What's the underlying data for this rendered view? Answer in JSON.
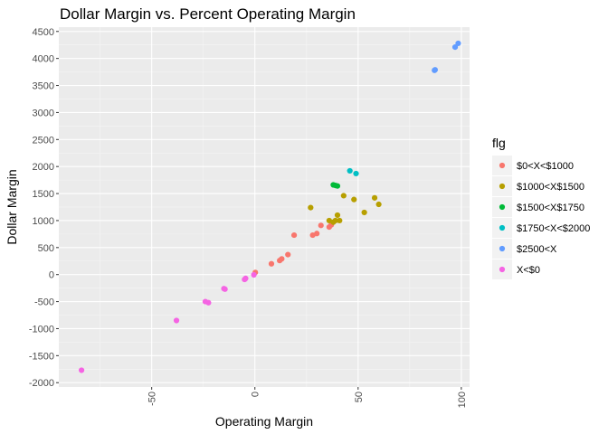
{
  "chart_data": {
    "type": "scatter",
    "title": "Dollar Margin vs. Percent Operating Margin",
    "xlabel": "Operating Margin",
    "ylabel": "Dollar Margin",
    "xlim": [
      -95,
      104
    ],
    "ylim": [
      -2080,
      4580
    ],
    "x_ticks": [
      -50,
      0,
      50,
      100
    ],
    "x_tick_labels": [
      "-50",
      "0",
      "50",
      "100"
    ],
    "y_ticks": [
      -2000,
      -1500,
      -1000,
      -500,
      0,
      500,
      1000,
      1500,
      2000,
      2500,
      3000,
      3500,
      4000,
      4500
    ],
    "y_tick_labels": [
      "-2000",
      "-1500",
      "-1000",
      "-500",
      "0",
      "500",
      "1000",
      "1500",
      "2000",
      "2500",
      "3000",
      "3500",
      "4000",
      "4500"
    ],
    "grid": true,
    "legend": {
      "title": "flg",
      "placement": "right"
    },
    "series": [
      {
        "name": "$0<X<$1000",
        "color": "#F8766D",
        "x": [
          0.2,
          8,
          12,
          13,
          16,
          19,
          28,
          30,
          32,
          36,
          37
        ],
        "y": [
          40,
          200,
          260,
          290,
          370,
          730,
          730,
          760,
          910,
          880,
          920
        ]
      },
      {
        "name": "$1000<X$1500",
        "color": "#B79F00",
        "x": [
          27,
          36,
          38,
          39,
          40,
          41,
          43,
          48,
          53,
          58,
          60
        ],
        "y": [
          1240,
          1000,
          970,
          1000,
          1100,
          1000,
          1460,
          1390,
          1150,
          1420,
          1300
        ]
      },
      {
        "name": "$1500<X$1750",
        "color": "#00BA38",
        "x": [
          38,
          39,
          40
        ],
        "y": [
          1660,
          1650,
          1640
        ]
      },
      {
        "name": "$1750<X<$2000",
        "color": "#00BFC4",
        "x": [
          46,
          49
        ],
        "y": [
          1920,
          1870
        ]
      },
      {
        "name": "$2500<X",
        "color": "#619CFF",
        "x": [
          87,
          87.3,
          97,
          98.5
        ],
        "y": [
          3780,
          3790,
          4210,
          4280
        ]
      },
      {
        "name": "X<$0",
        "color": "#F564E3",
        "x": [
          -84,
          -38,
          -24,
          -22.5,
          -15,
          -14.5,
          -5,
          -4.5,
          -0.5
        ],
        "y": [
          -1770,
          -850,
          -500,
          -520,
          -260,
          -270,
          -90,
          -70,
          -5
        ]
      }
    ]
  }
}
